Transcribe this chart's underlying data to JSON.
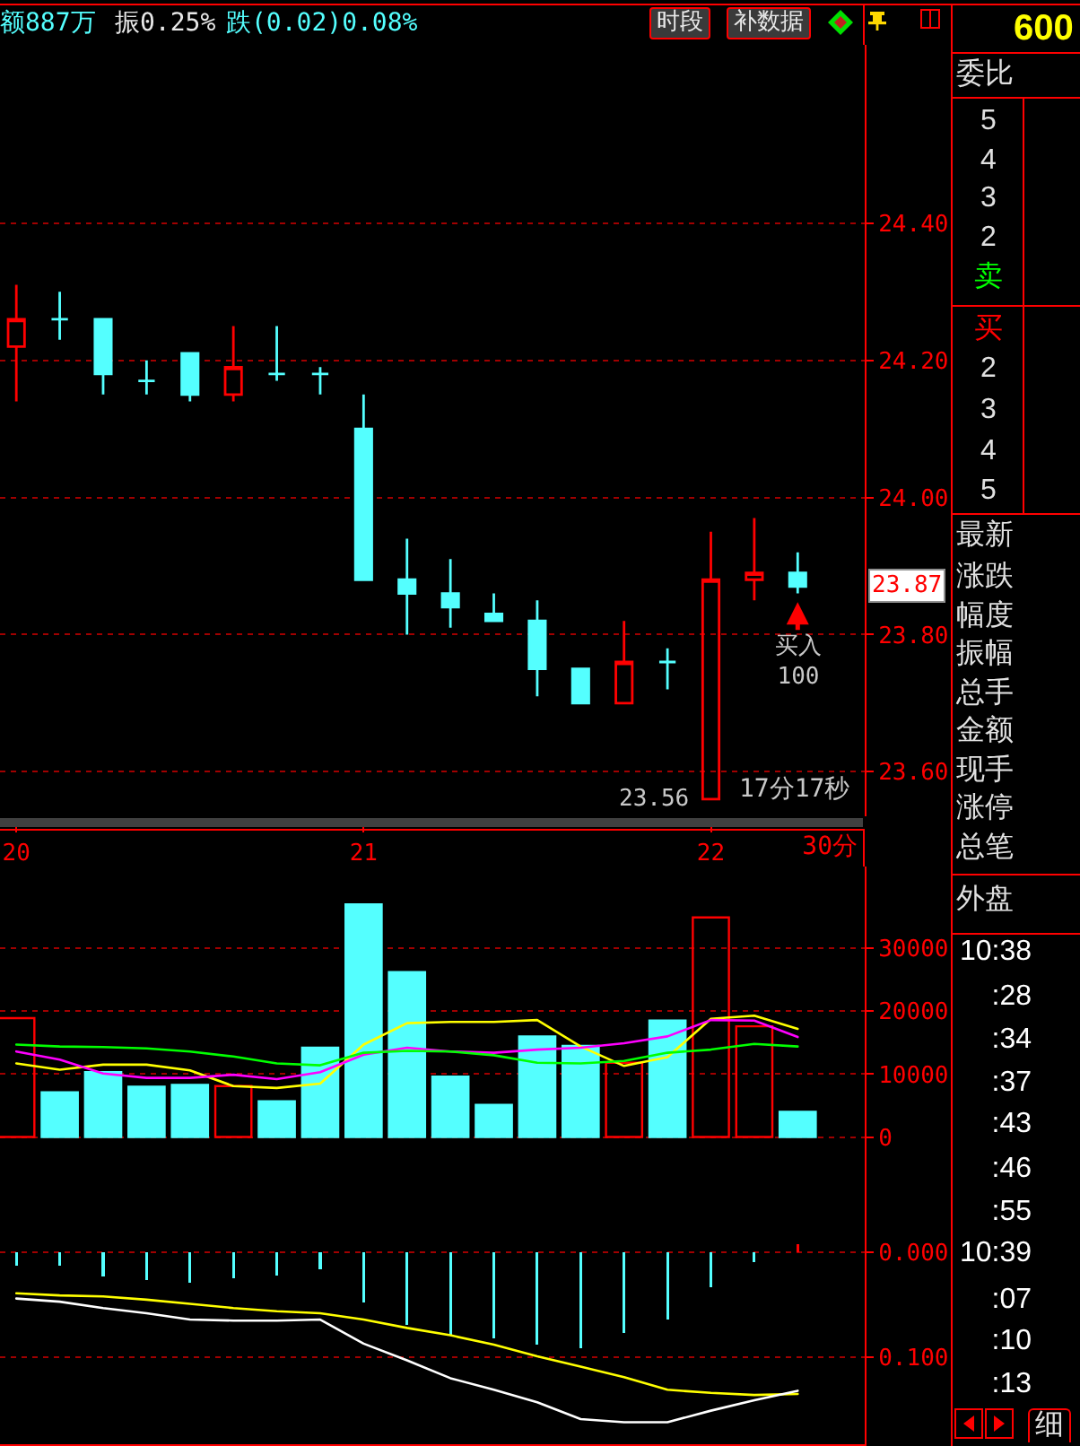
{
  "chart_data": [
    {
      "type": "candlestick",
      "x": [
        20,
        20.125,
        20.25,
        20.375,
        20.5,
        20.625,
        20.75,
        20.875,
        21,
        21.125,
        21.25,
        21.375,
        21.5,
        21.625,
        21.75,
        21.875,
        22,
        22.125,
        22.25
      ],
      "ohlc": [
        [
          24.22,
          24.31,
          24.14,
          24.26
        ],
        [
          24.26,
          24.3,
          24.23,
          24.26
        ],
        [
          24.26,
          24.26,
          24.15,
          24.18
        ],
        [
          24.17,
          24.2,
          24.15,
          24.17
        ],
        [
          24.21,
          24.21,
          24.14,
          24.15
        ],
        [
          24.15,
          24.25,
          24.14,
          24.19
        ],
        [
          24.18,
          24.25,
          24.17,
          24.18
        ],
        [
          24.18,
          24.19,
          24.15,
          24.18
        ],
        [
          24.1,
          24.15,
          23.88,
          23.88
        ],
        [
          23.88,
          23.94,
          23.8,
          23.86
        ],
        [
          23.86,
          23.91,
          23.81,
          23.84
        ],
        [
          23.83,
          23.86,
          23.82,
          23.82
        ],
        [
          23.82,
          23.85,
          23.71,
          23.75
        ],
        [
          23.75,
          23.75,
          23.7,
          23.7
        ],
        [
          23.7,
          23.82,
          23.7,
          23.76
        ],
        [
          23.76,
          23.78,
          23.72,
          23.76
        ],
        [
          23.56,
          23.95,
          23.56,
          23.88
        ],
        [
          23.88,
          23.97,
          23.85,
          23.89
        ],
        [
          23.89,
          23.92,
          23.86,
          23.87
        ]
      ],
      "colors": [
        "#ff0000",
        "#54ffff",
        "#54ffff",
        "#54ffff",
        "#54ffff",
        "#ff0000",
        "#54ffff",
        "#54ffff",
        "#54ffff",
        "#54ffff",
        "#54ffff",
        "#54ffff",
        "#54ffff",
        "#54ffff",
        "#ff0000",
        "#54ffff",
        "#ff0000",
        "#ff0000",
        "#54ffff"
      ],
      "xlim": [
        19.953,
        22.443
      ],
      "xticks": [
        20,
        21,
        22
      ],
      "xlabel": "30分",
      "ylim": [
        23.535,
        24.66
      ],
      "yticks": [
        {
          "value": 23.6,
          "label": "23.60"
        },
        {
          "value": 23.8,
          "label": "23.80"
        },
        {
          "value": 24,
          "label": "24.00"
        },
        {
          "value": 24.2,
          "label": "24.20"
        },
        {
          "value": 24.4,
          "label": "24.40"
        }
      ],
      "grid": "y",
      "annotations": [
        "额887万",
        "振0.25%",
        "跌(0.02)0.08%",
        "时段",
        "补数据",
        {
          "text": "23.56",
          "x": 22,
          "y": 23.56
        },
        "17分17秒",
        {
          "text": "买入\n100",
          "x": 22.25,
          "y": 23.85
        },
        {
          "text": "23.87",
          "y": 23.87
        }
      ]
    },
    {
      "type": "bar",
      "x": [
        20,
        20.125,
        20.25,
        20.375,
        20.5,
        20.625,
        20.75,
        20.875,
        21,
        21.125,
        21.25,
        21.375,
        21.5,
        21.625,
        21.75,
        21.875,
        22,
        22.125,
        22.25
      ],
      "series": [
        {
          "type": "bar",
          "colors": [
            "#ff0000",
            "#54ffff",
            "#54ffff",
            "#54ffff",
            "#54ffff",
            "#ff0000",
            "#54ffff",
            "#54ffff",
            "#54ffff",
            "#54ffff",
            "#54ffff",
            "#54ffff",
            "#54ffff",
            "#54ffff",
            "#ff0000",
            "#54ffff",
            "#ff0000",
            "#ff0000",
            "#54ffff"
          ],
          "values": [
            18900,
            7100,
            10300,
            8000,
            8300,
            8100,
            5700,
            14200,
            37000,
            26200,
            9600,
            5100,
            16000,
            14500,
            11800,
            18500,
            34900,
            17600,
            4000
          ]
        },
        {
          "type": "line",
          "color": "#ffff00",
          "values": [
            11700,
            10700,
            11500,
            11500,
            10600,
            8100,
            7800,
            8500,
            14700,
            18100,
            18300,
            18300,
            18600,
            14400,
            11300,
            12700,
            18800,
            19300,
            17200
          ]
        },
        {
          "type": "line",
          "color": "#ff00ff",
          "values": [
            13600,
            12300,
            10100,
            9400,
            9400,
            9900,
            9200,
            10300,
            13100,
            14200,
            13600,
            13400,
            13900,
            14200,
            14900,
            16000,
            18600,
            18500,
            15900
          ]
        },
        {
          "type": "line",
          "color": "#00ff00",
          "values": [
            14700,
            14400,
            14300,
            14100,
            13600,
            12800,
            11700,
            11400,
            13400,
            13700,
            13600,
            13000,
            11800,
            11700,
            12100,
            13400,
            13900,
            14800,
            14400
          ]
        }
      ],
      "xlim": [
        19.953,
        22.443
      ],
      "ylim": [
        -3200,
        43000
      ],
      "yticks": [
        0,
        10000,
        20000,
        30000
      ],
      "grid": "y",
      "tick_labels": "y"
    },
    {
      "type": "bar",
      "x": [
        20,
        20.125,
        20.25,
        20.375,
        20.5,
        20.625,
        20.75,
        20.875,
        21,
        21.125,
        21.25,
        21.375,
        21.5,
        21.625,
        21.75,
        21.875,
        22,
        22.125,
        22.25
      ],
      "series": [
        {
          "type": "bar",
          "colors": [
            "#54ffff",
            "#54ffff",
            "#54ffff",
            "#54ffff",
            "#54ffff",
            "#54ffff",
            "#54ffff",
            "#54ffff",
            "#54ffff",
            "#54ffff",
            "#54ffff",
            "#54ffff",
            "#54ffff",
            "#54ffff",
            "#54ffff",
            "#54ffff",
            "#54ffff",
            "#54ffff",
            "#ff0000"
          ],
          "values": [
            -0.013,
            -0.013,
            -0.023,
            -0.026,
            -0.029,
            -0.025,
            -0.022,
            -0.016,
            -0.048,
            -0.069,
            -0.079,
            -0.082,
            -0.088,
            -0.091,
            -0.077,
            -0.064,
            -0.033,
            -0.009,
            0.008
          ]
        },
        {
          "type": "line",
          "color": "#ffff00",
          "values": [
            -0.039,
            -0.041,
            -0.042,
            -0.045,
            -0.049,
            -0.053,
            -0.056,
            -0.058,
            -0.064,
            -0.072,
            -0.079,
            -0.088,
            -0.099,
            -0.109,
            -0.119,
            -0.131,
            -0.134,
            -0.136,
            -0.135
          ]
        },
        {
          "type": "line",
          "color": "#ffffff",
          "values": [
            -0.044,
            -0.047,
            -0.053,
            -0.058,
            -0.064,
            -0.065,
            -0.065,
            -0.064,
            -0.087,
            -0.103,
            -0.12,
            -0.131,
            -0.143,
            -0.159,
            -0.162,
            -0.162,
            -0.151,
            -0.141,
            -0.132
          ]
        }
      ],
      "xlim": [
        19.953,
        22.443
      ],
      "ylim": [
        -0.183,
        0.091
      ],
      "yticks": [
        {
          "value": -0.1,
          "label": "0.100"
        },
        {
          "value": 0,
          "label": "0.000"
        }
      ],
      "grid": "y",
      "tick_labels": "y"
    },
    {
      "type": "other",
      "title": "600",
      "annotations": [
        "委比",
        "5",
        "4",
        "3",
        "2",
        "卖",
        "买",
        "2",
        "3",
        "4",
        "5",
        "最新",
        "涨跌",
        "幅度",
        "振幅",
        "总手",
        "金额",
        "现手",
        "涨停",
        "总笔",
        "外盘",
        "10:38",
        ":28",
        ":34",
        ":37",
        ":43",
        ":46",
        ":55",
        "10:39",
        ":07",
        ":10",
        ":13",
        "细"
      ]
    }
  ]
}
